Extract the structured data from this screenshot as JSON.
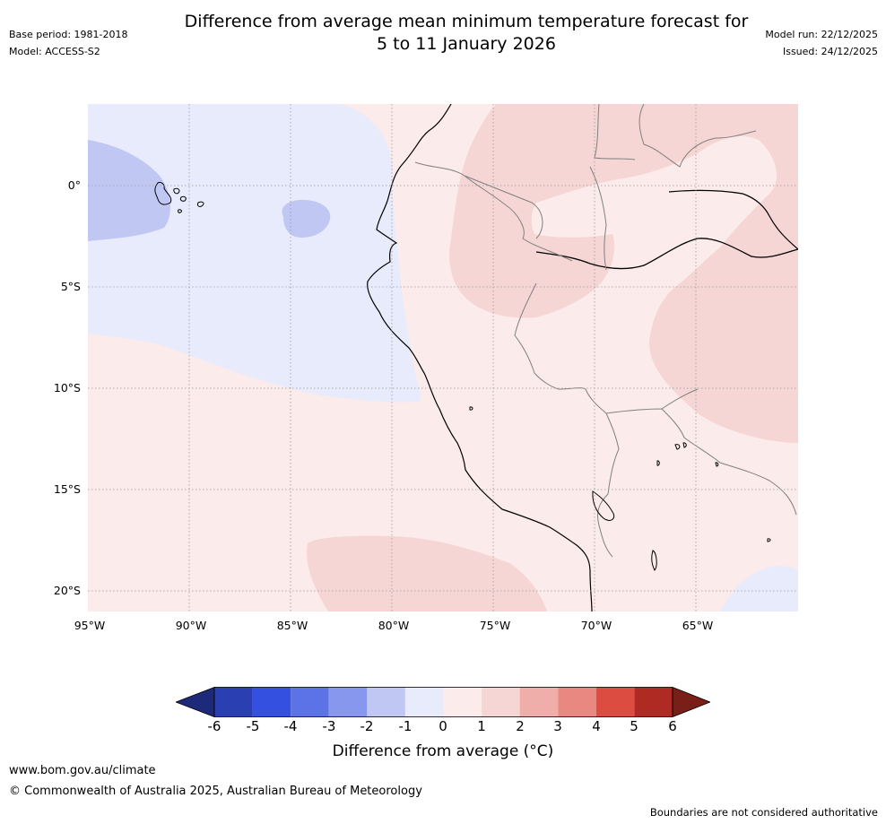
{
  "header": {
    "title_line1": "Difference from average mean minimum temperature forecast for",
    "title_line2": "5 to 11 January 2026",
    "base_period": "Base period: 1981-2018",
    "model": "Model: ACCESS-S2",
    "model_run": "Model run: 22/12/2025",
    "issued": "Issued: 24/12/2025"
  },
  "map": {
    "lat_labels": [
      "0°",
      "5°S",
      "10°S",
      "15°S",
      "20°S"
    ],
    "lon_labels": [
      "95°W",
      "90°W",
      "85°W",
      "80°W",
      "75°W",
      "70°W",
      "65°W"
    ],
    "colors": {
      "neg1": "#e8ebfb",
      "neg2": "#c0c7f3",
      "pos1": "#fbebea",
      "pos2": "#f5d6d4",
      "coast": "#000000",
      "border": "#808080",
      "grid": "#999999"
    }
  },
  "colorbar": {
    "ticks": [
      "-6",
      "-5",
      "-4",
      "-3",
      "-2",
      "-1",
      "0",
      "1",
      "2",
      "3",
      "4",
      "5",
      "6"
    ],
    "colors": [
      "#1d2a79",
      "#2a40b2",
      "#3450e0",
      "#5c73e8",
      "#8797ed",
      "#c0c7f3",
      "#e8ebfb",
      "#fbebea",
      "#f5d6d4",
      "#efaeaa",
      "#e88880",
      "#dd4c40",
      "#ae2a22",
      "#7a1e18"
    ],
    "label": "Difference from average (°C)"
  },
  "footer": {
    "url": "www.bom.gov.au/climate",
    "copyright": "© Commonwealth of Australia 2025, Australian Bureau of Meteorology",
    "disclaimer": "Boundaries are not considered authoritative"
  }
}
